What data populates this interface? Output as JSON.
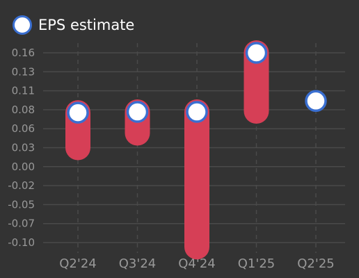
{
  "legend": {
    "label": "EPS estimate"
  },
  "colors": {
    "background": "#333333",
    "grid": "#4a4a4a",
    "bar": "#d63f56",
    "marker_fill": "#ffffff",
    "marker_stroke": "#3a6fd1",
    "tick_text": "#999999",
    "legend_text": "#ffffff"
  },
  "chart_data": {
    "type": "scatter",
    "categories": [
      "Q2'24",
      "Q3'24",
      "Q4'24",
      "Q1'25",
      "Q2'25"
    ],
    "y_ticks": [
      "0.16",
      "0.13",
      "0.11",
      "0.08",
      "0.06",
      "0.03",
      "0.00",
      "-0.02",
      "-0.05",
      "-0.07",
      "-0.10"
    ],
    "ylim": [
      -0.105,
      0.168
    ],
    "grid": true,
    "legend_position": "top-left",
    "series": [
      {
        "name": "EPS estimate",
        "values": [
          0.078,
          0.079,
          0.079,
          0.16,
          0.094
        ]
      }
    ],
    "ranges": [
      {
        "category": "Q2'24",
        "low": 0.03,
        "high": 0.078
      },
      {
        "category": "Q3'24",
        "low": 0.05,
        "high": 0.079
      },
      {
        "category": "Q4'24",
        "low": -0.106,
        "high": 0.079
      },
      {
        "category": "Q1'25",
        "low": 0.08,
        "high": 0.16
      },
      {
        "category": "Q2'25",
        "low": null,
        "high": null
      }
    ]
  }
}
